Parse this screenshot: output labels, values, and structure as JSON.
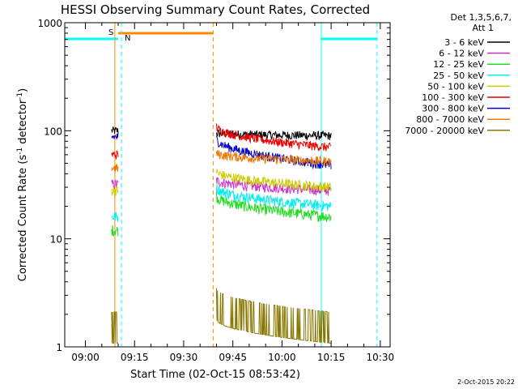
{
  "chart_data": {
    "type": "line",
    "title": "HESSI Observing Summary Count Rates, Corrected",
    "xlabel": "Start Time (02-Oct-15 08:53:42)",
    "ylabel": "Corrected Count Rate (s⁻¹ detector⁻¹)",
    "ylabel_parts": {
      "pre": "Corrected Count Rate (s",
      "exp1": "-1",
      "mid": " detector",
      "exp2": "-1",
      "post": ")"
    },
    "y_scale": "log",
    "ylim": [
      1,
      1000
    ],
    "yticks": [
      "1",
      "10",
      "100",
      "1000"
    ],
    "xlim": [
      "08:53:42",
      "10:33:00"
    ],
    "xticks": [
      "09:00",
      "09:15",
      "09:30",
      "09:45",
      "10:00",
      "10:15",
      "10:30"
    ],
    "grid": false,
    "legend": {
      "placement": "outside-right",
      "header": [
        "Det 1,3,5,6,7,",
        "Att 1"
      ]
    },
    "series": [
      {
        "name": "3 - 6 keV",
        "color": "#000000",
        "segments": [
          {
            "x": [
              "09:08",
              "09:10"
            ],
            "y": [
              100,
              100
            ]
          },
          {
            "x": [
              "09:40",
              "10:15"
            ],
            "y": [
              95,
              90
            ]
          }
        ]
      },
      {
        "name": "6 - 12 keV",
        "color": "#cc33cc",
        "segments": [
          {
            "x": [
              "09:08",
              "09:10"
            ],
            "y": [
              32,
              32
            ]
          },
          {
            "x": [
              "09:40",
              "10:15"
            ],
            "y": [
              35,
              28
            ]
          }
        ]
      },
      {
        "name": "12 - 25 keV",
        "color": "#22dd22",
        "segments": [
          {
            "x": [
              "09:08",
              "09:10"
            ],
            "y": [
              12,
              12
            ]
          },
          {
            "x": [
              "09:40",
              "10:15"
            ],
            "y": [
              25,
              16
            ]
          }
        ]
      },
      {
        "name": "25 - 50 keV",
        "color": "#00eeee",
        "segments": [
          {
            "x": [
              "09:08",
              "09:10"
            ],
            "y": [
              16,
              16
            ]
          },
          {
            "x": [
              "09:40",
              "10:15"
            ],
            "y": [
              30,
              20
            ]
          }
        ]
      },
      {
        "name": "50 - 100 keV",
        "color": "#cccc00",
        "segments": [
          {
            "x": [
              "09:08",
              "09:10"
            ],
            "y": [
              28,
              28
            ]
          },
          {
            "x": [
              "09:40",
              "10:15"
            ],
            "y": [
              42,
              30
            ]
          }
        ]
      },
      {
        "name": "100 - 300 keV",
        "color": "#ee0000",
        "segments": [
          {
            "x": [
              "09:08",
              "09:10"
            ],
            "y": [
              60,
              60
            ]
          },
          {
            "x": [
              "09:40",
              "10:15"
            ],
            "y": [
              110,
              70
            ]
          }
        ]
      },
      {
        "name": "300 - 800 keV",
        "color": "#0000cc",
        "segments": [
          {
            "x": [
              "09:08",
              "09:10"
            ],
            "y": [
              88,
              88
            ]
          },
          {
            "x": [
              "09:40",
              "10:15"
            ],
            "y": [
              85,
              48
            ]
          }
        ]
      },
      {
        "name": "800 - 7000 keV",
        "color": "#ee7700",
        "segments": [
          {
            "x": [
              "09:08",
              "09:10"
            ],
            "y": [
              45,
              45
            ]
          },
          {
            "x": [
              "09:40",
              "10:15"
            ],
            "y": [
              62,
              52
            ]
          }
        ]
      },
      {
        "name": "7000 - 20000 keV",
        "color": "#887700",
        "segments": [
          {
            "x": [
              "09:08",
              "09:10"
            ],
            "y": [
              1.5,
              1.5
            ]
          },
          {
            "x": [
              "09:40",
              "10:15"
            ],
            "y": [
              2.5,
              1.5
            ]
          }
        ]
      }
    ],
    "annotations": {
      "night_color": "#00ffff",
      "saa_color": "#ff8800",
      "night_label": "N",
      "saa_label": "S",
      "night_intervals": [
        [
          "08:53:42",
          "09:10"
        ],
        [
          "10:12",
          "10:29"
        ]
      ],
      "saa_interval": [
        "09:10",
        "09:39"
      ],
      "solid_vlines": [
        {
          "t": "09:09",
          "color": "#ff8800"
        },
        {
          "t": "10:12",
          "color": "#00ffff"
        }
      ],
      "dashed_vlines": [
        {
          "t": "09:11",
          "color": "#00ffff"
        },
        {
          "t": "09:39",
          "color": "#ff8800"
        },
        {
          "t": "10:29",
          "color": "#00ffff"
        }
      ]
    },
    "footer_date": "2-Oct-2015 20:22"
  }
}
